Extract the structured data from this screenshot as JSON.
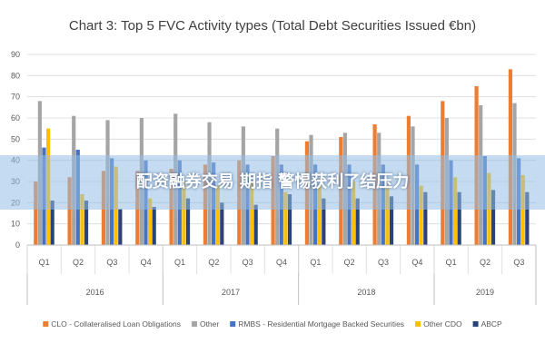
{
  "overlay": {
    "banner_text": "配资融券交易 期指 警惕获利了结压力"
  },
  "chart_data": {
    "type": "bar",
    "title": "Chart 3: Top 5 FVC Activity types (Total Debt Securities Issued €bn)",
    "xlabel": "",
    "ylabel": "",
    "ylim": [
      0,
      90
    ],
    "yticks": [
      0,
      10,
      20,
      30,
      40,
      50,
      60,
      70,
      80,
      90
    ],
    "grid": true,
    "legend_position": "bottom",
    "categories": [
      "Q1",
      "Q2",
      "Q3",
      "Q4",
      "Q1",
      "Q2",
      "Q3",
      "Q4",
      "Q1",
      "Q2",
      "Q3",
      "Q4",
      "Q1",
      "Q2",
      "Q3"
    ],
    "groups": [
      {
        "label": "2016",
        "count": 4
      },
      {
        "label": "2017",
        "count": 4
      },
      {
        "label": "2018",
        "count": 4
      },
      {
        "label": "2019",
        "count": 3
      }
    ],
    "series": [
      {
        "name": "CLO - Collateralised Loan Obligations",
        "color": "#ED7D31",
        "values": [
          30,
          32,
          35,
          35,
          36,
          38,
          40,
          42,
          49,
          51,
          57,
          61,
          68,
          75,
          83
        ]
      },
      {
        "name": "Other",
        "color": "#A5A5A5",
        "values": [
          68,
          61,
          59,
          60,
          62,
          58,
          56,
          55,
          52,
          53,
          53,
          56,
          60,
          66,
          67
        ]
      },
      {
        "name": "RMBS - Residential Mortgage Backed Securities",
        "color": "#4472C4",
        "values": [
          46,
          45,
          41,
          40,
          40,
          39,
          38,
          38,
          38,
          38,
          38,
          38,
          40,
          42,
          41
        ]
      },
      {
        "name": "Other CDO",
        "color": "#FFC000",
        "values": [
          55,
          24,
          37,
          22,
          30,
          28,
          30,
          25,
          28,
          30,
          28,
          28,
          32,
          34,
          33
        ]
      },
      {
        "name": "ABCP",
        "color": "#264478",
        "values": [
          21,
          21,
          17,
          18,
          22,
          20,
          19,
          24,
          22,
          22,
          23,
          25,
          25,
          26,
          25
        ]
      }
    ]
  }
}
